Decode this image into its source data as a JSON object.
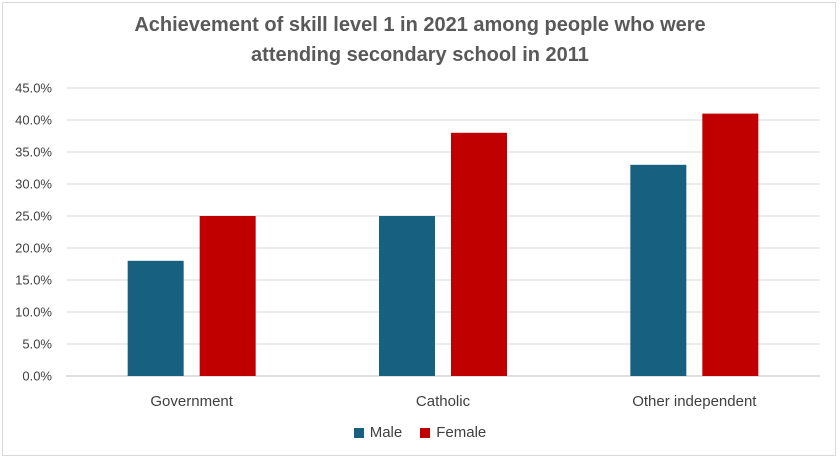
{
  "chart_data": {
    "type": "bar",
    "title_lines": [
      "Achievement of skill level 1 in 2021 among people who were",
      "attending secondary school in 2011"
    ],
    "categories": [
      "Government",
      "Catholic",
      "Other independent"
    ],
    "series": [
      {
        "name": "Male",
        "values": [
          18.0,
          25.0,
          33.0
        ],
        "color": "#17607f"
      },
      {
        "name": "Female",
        "values": [
          25.0,
          38.0,
          41.0
        ],
        "color": "#c00000"
      }
    ],
    "y_ticks": [
      "0.0%",
      "5.0%",
      "10.0%",
      "15.0%",
      "20.0%",
      "25.0%",
      "30.0%",
      "35.0%",
      "40.0%",
      "45.0%"
    ],
    "ylim": [
      0,
      45
    ],
    "y_step": 5,
    "grid": true,
    "legend_position": "bottom",
    "xlabel": "",
    "ylabel": ""
  }
}
